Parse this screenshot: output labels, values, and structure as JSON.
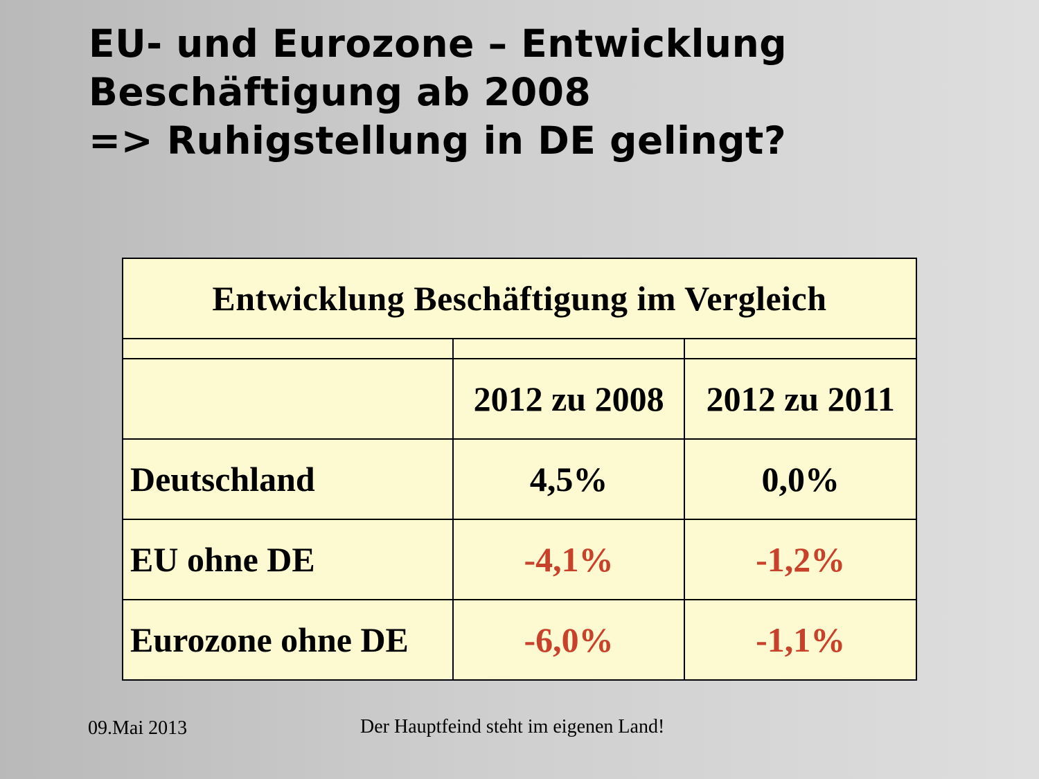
{
  "title": {
    "line1": "EU- und Eurozone – Entwicklung",
    "line2": "Beschäftigung ab 2008",
    "line3": "=> Ruhigstellung in DE gelingt?"
  },
  "table": {
    "caption": "Entwicklung Beschäftigung im Vergleich",
    "columns": [
      "",
      "2012 zu 2008",
      "2012 zu 2011"
    ],
    "rows": [
      {
        "label": "Deutschland",
        "values": [
          "4,5%",
          "0,0%"
        ],
        "colors": [
          "#000000",
          "#000000"
        ]
      },
      {
        "label": "EU ohne DE",
        "values": [
          "-4,1%",
          "-1,2%"
        ],
        "colors": [
          "#c8412a",
          "#c8412a"
        ]
      },
      {
        "label": "Eurozone ohne DE",
        "values": [
          "-6,0%",
          "-1,1%"
        ],
        "colors": [
          "#c8412a",
          "#c8412a"
        ]
      }
    ]
  },
  "footer": {
    "date": "09.Mai 2013",
    "text": "Der Hauptfeind steht im eigenen Land!"
  },
  "colors": {
    "table_background": "#fdf9d0",
    "negative_value": "#c8412a"
  }
}
